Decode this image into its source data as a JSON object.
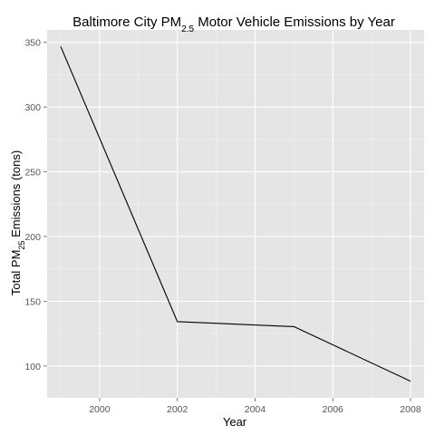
{
  "chart_data": {
    "type": "line",
    "title": {
      "prefix": "Baltimore City PM",
      "subscript": "2.5",
      "suffix": " Motor Vehicle Emissions by Year"
    },
    "xlabel": "Year",
    "ylabel": {
      "prefix": "Total PM",
      "subscript": "25",
      "suffix": " Emissions (tons)"
    },
    "xlim": [
      1998.65,
      2008.35
    ],
    "ylim": [
      75.4,
      359.6
    ],
    "xticks": [
      2000,
      2002,
      2004,
      2006,
      2008
    ],
    "yticks": [
      100,
      150,
      200,
      250,
      300,
      350
    ],
    "series": [
      {
        "x": [
          1999,
          2002,
          2005,
          2008
        ],
        "y": [
          346.8,
          134.3,
          130.4,
          88.3
        ]
      }
    ],
    "grid": true,
    "colors": {
      "panel": "#e5e5e5",
      "grid_major": "#ffffff",
      "grid_minor": "#f2f2f2",
      "line": "#000000",
      "tick_text": "#555555"
    }
  }
}
